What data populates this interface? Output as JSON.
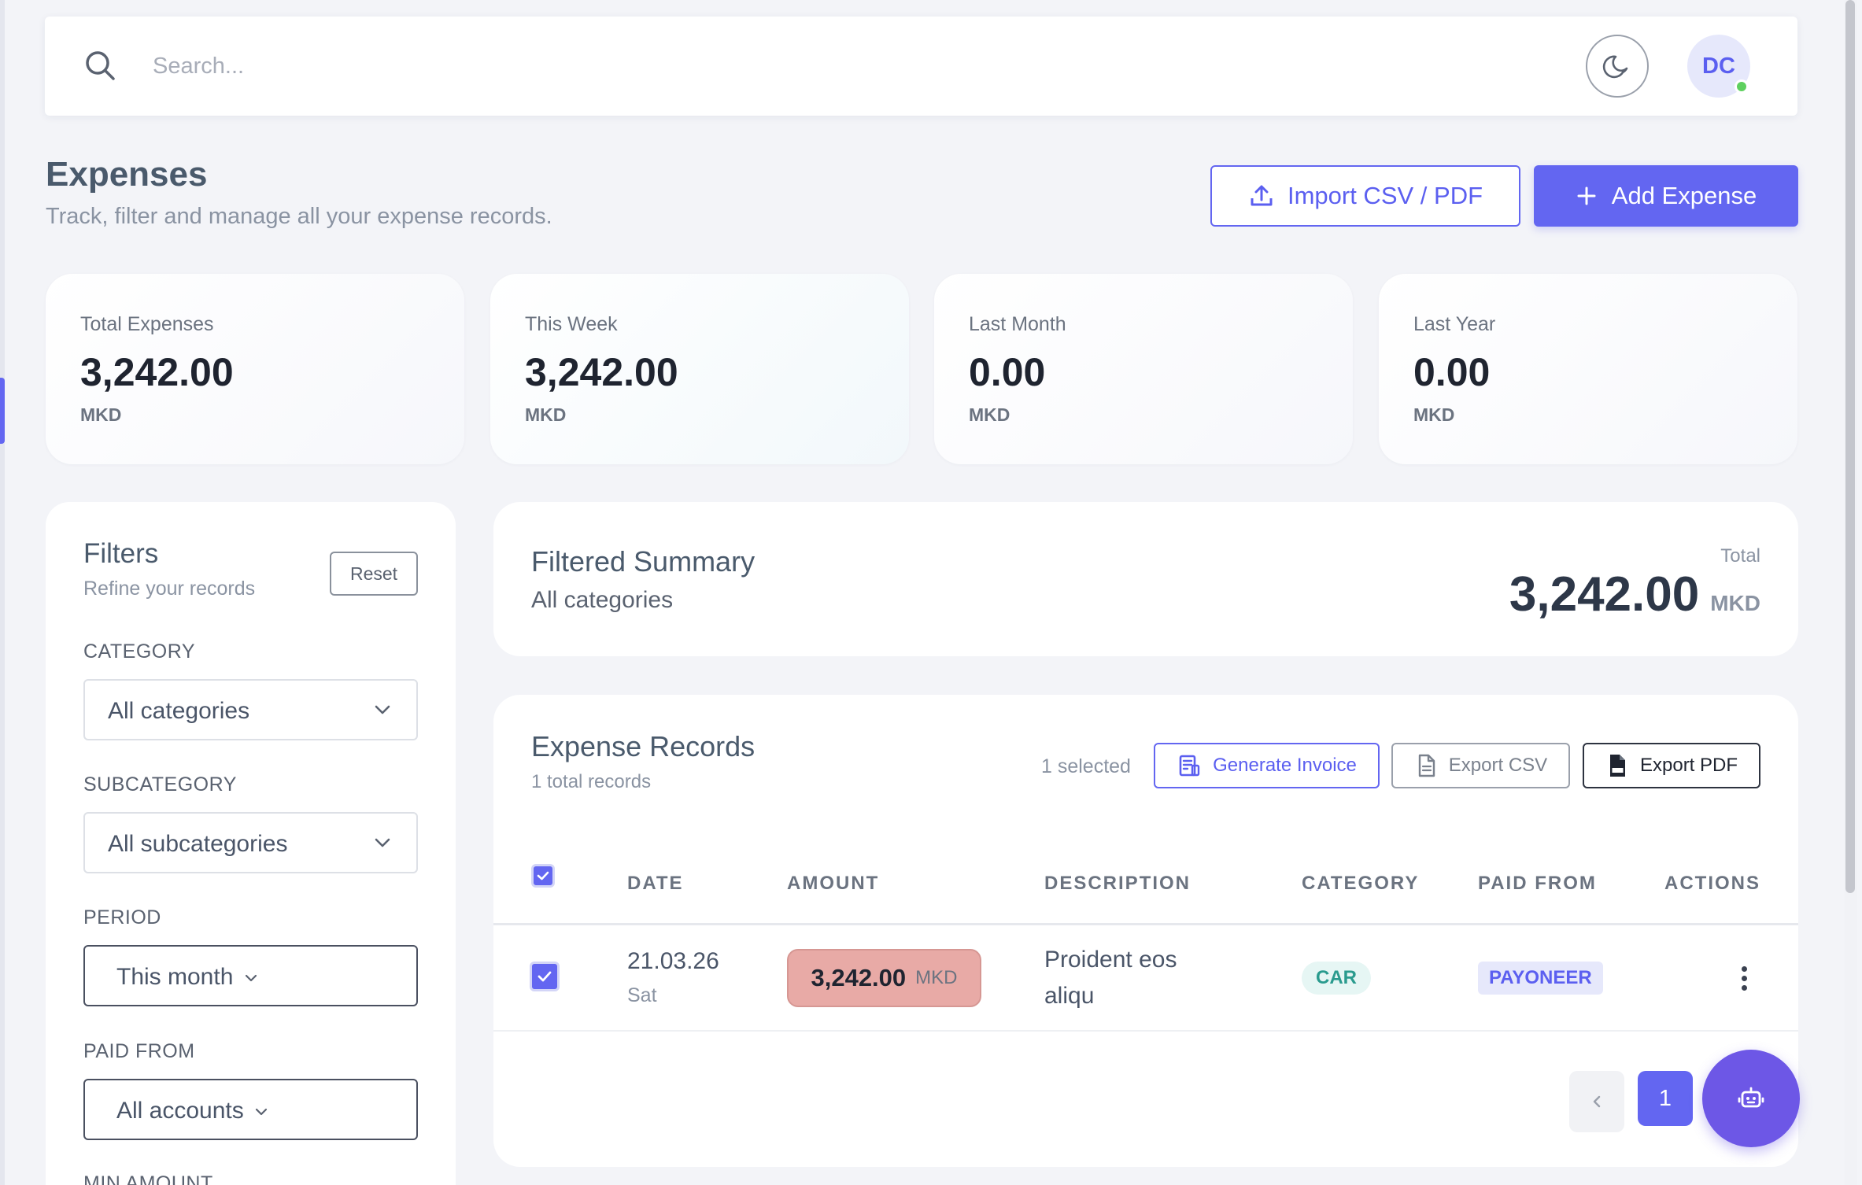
{
  "search": {
    "placeholder": "Search..."
  },
  "user": {
    "initials": "DC"
  },
  "header": {
    "title": "Expenses",
    "subtitle": "Track, filter and manage all your expense records.",
    "import_label": "Import CSV / PDF",
    "add_label": "Add Expense"
  },
  "stats": [
    {
      "label": "Total Expenses",
      "value": "3,242.00",
      "currency": "MKD"
    },
    {
      "label": "This Week",
      "value": "3,242.00",
      "currency": "MKD"
    },
    {
      "label": "Last Month",
      "value": "0.00",
      "currency": "MKD"
    },
    {
      "label": "Last Year",
      "value": "0.00",
      "currency": "MKD"
    }
  ],
  "filters": {
    "title": "Filters",
    "subtitle": "Refine your records",
    "reset_label": "Reset",
    "category_label": "CATEGORY",
    "category_value": "All categories",
    "subcategory_label": "SUBCATEGORY",
    "subcategory_value": "All subcategories",
    "period_label": "PERIOD",
    "period_value": "This month",
    "paid_from_label": "PAID FROM",
    "paid_from_value": "All accounts",
    "min_amount_label": "MIN AMOUNT"
  },
  "summary": {
    "title": "Filtered Summary",
    "subtitle": "All categories",
    "total_label": "Total",
    "total_value": "3,242.00",
    "total_currency": "MKD"
  },
  "records": {
    "title": "Expense Records",
    "subtitle": "1 total records",
    "selected_text": "1 selected",
    "generate_invoice_label": "Generate Invoice",
    "export_csv_label": "Export CSV",
    "export_pdf_label": "Export PDF",
    "columns": [
      "DATE",
      "AMOUNT",
      "DESCRIPTION",
      "CATEGORY",
      "PAID FROM",
      "ACTIONS"
    ],
    "rows": [
      {
        "date": "21.03.26",
        "day": "Sat",
        "amount": "3,242.00",
        "currency": "MKD",
        "description": "Proident eos aliqu",
        "category": "CAR",
        "paid_from": "PAYONEER",
        "selected": true
      }
    ],
    "current_page": "1"
  },
  "colors": {
    "accent": "#6366f1",
    "amount_pill": "#e8aaa6",
    "category_badge_text": "#2a9b8e",
    "online_dot": "#5ed05e"
  },
  "icons": {
    "search": "search-icon",
    "theme": "moon-icon",
    "import": "upload-icon",
    "add": "plus-icon",
    "invoice": "invoice-icon",
    "csv": "file-icon",
    "pdf": "pdf-icon",
    "assistant": "robot-icon"
  }
}
